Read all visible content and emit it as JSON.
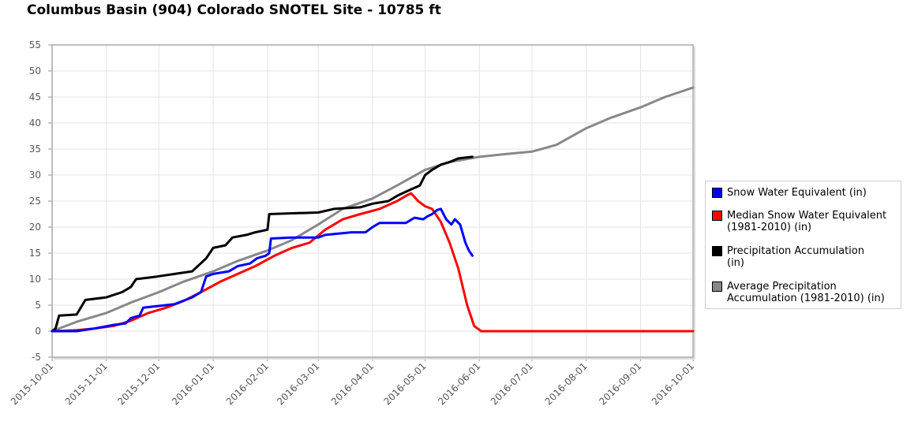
{
  "chart_data": {
    "type": "line",
    "title": "Columbus Basin (904) Colorado SNOTEL Site - 10785 ft",
    "xlabel": "",
    "ylabel": "",
    "x_type": "date",
    "xlim": [
      "2015-10-01",
      "2016-10-01"
    ],
    "ylim": [
      -5,
      55
    ],
    "y_ticks": [
      -5,
      0,
      5,
      10,
      15,
      20,
      25,
      30,
      35,
      40,
      45,
      50,
      55
    ],
    "x_ticks": [
      "2015-10-01",
      "2015-11-01",
      "2015-12-01",
      "2016-01-01",
      "2016-02-01",
      "2016-03-01",
      "2016-04-01",
      "2016-05-01",
      "2016-06-01",
      "2016-07-01",
      "2016-08-01",
      "2016-09-01",
      "2016-10-01"
    ],
    "grid": true,
    "legend_position": "right",
    "series": [
      {
        "name": "Snow Water Equivalent (in)",
        "color": "#0000ff",
        "points": [
          [
            "2015-10-01",
            0
          ],
          [
            "2015-10-15",
            0
          ],
          [
            "2015-10-25",
            0.5
          ],
          [
            "2015-11-05",
            1.2
          ],
          [
            "2015-11-12",
            1.5
          ],
          [
            "2015-11-15",
            2.5
          ],
          [
            "2015-11-20",
            3
          ],
          [
            "2015-11-22",
            4.5
          ],
          [
            "2015-11-30",
            4.8
          ],
          [
            "2015-12-10",
            5.2
          ],
          [
            "2015-12-20",
            6.5
          ],
          [
            "2015-12-25",
            7.5
          ],
          [
            "2015-12-28",
            10.5
          ],
          [
            "2016-01-01",
            11
          ],
          [
            "2016-01-10",
            11.5
          ],
          [
            "2016-01-15",
            12.5
          ],
          [
            "2016-01-22",
            13
          ],
          [
            "2016-01-26",
            14
          ],
          [
            "2016-01-31",
            14.5
          ],
          [
            "2016-02-02",
            15
          ],
          [
            "2016-02-03",
            17.8
          ],
          [
            "2016-02-15",
            18
          ],
          [
            "2016-03-01",
            18
          ],
          [
            "2016-03-05",
            18.5
          ],
          [
            "2016-03-20",
            19
          ],
          [
            "2016-03-28",
            19
          ],
          [
            "2016-04-01",
            20
          ],
          [
            "2016-04-05",
            20.8
          ],
          [
            "2016-04-20",
            20.8
          ],
          [
            "2016-04-25",
            21.8
          ],
          [
            "2016-04-30",
            21.5
          ],
          [
            "2016-05-02",
            22
          ],
          [
            "2016-05-05",
            22.5
          ],
          [
            "2016-05-08",
            23.3
          ],
          [
            "2016-05-10",
            23.5
          ],
          [
            "2016-05-13",
            21.5
          ],
          [
            "2016-05-16",
            20.5
          ],
          [
            "2016-05-18",
            21.5
          ],
          [
            "2016-05-21",
            20.5
          ],
          [
            "2016-05-24",
            17
          ],
          [
            "2016-05-26",
            15.5
          ],
          [
            "2016-05-28",
            14.5
          ]
        ]
      },
      {
        "name": "Median Snow Water Equivalent (1981-2010) (in)",
        "color": "#ff0000",
        "points": [
          [
            "2015-10-01",
            0
          ],
          [
            "2015-10-15",
            0.2
          ],
          [
            "2015-10-25",
            0.5
          ],
          [
            "2015-11-05",
            1
          ],
          [
            "2015-11-15",
            2
          ],
          [
            "2015-11-25",
            3.5
          ],
          [
            "2015-12-05",
            4.5
          ],
          [
            "2015-12-15",
            5.8
          ],
          [
            "2015-12-25",
            7.5
          ],
          [
            "2016-01-05",
            9.5
          ],
          [
            "2016-01-15",
            11
          ],
          [
            "2016-01-25",
            12.5
          ],
          [
            "2016-02-05",
            14.5
          ],
          [
            "2016-02-15",
            16
          ],
          [
            "2016-02-25",
            17
          ],
          [
            "2016-03-05",
            19.5
          ],
          [
            "2016-03-15",
            21.5
          ],
          [
            "2016-03-25",
            22.5
          ],
          [
            "2016-04-05",
            23.5
          ],
          [
            "2016-04-15",
            25
          ],
          [
            "2016-04-20",
            26
          ],
          [
            "2016-04-23",
            26.5
          ],
          [
            "2016-04-27",
            25
          ],
          [
            "2016-05-01",
            24
          ],
          [
            "2016-05-05",
            23.5
          ],
          [
            "2016-05-10",
            21
          ],
          [
            "2016-05-15",
            17
          ],
          [
            "2016-05-20",
            12
          ],
          [
            "2016-05-25",
            5
          ],
          [
            "2016-05-29",
            1
          ],
          [
            "2016-06-02",
            0
          ],
          [
            "2016-10-01",
            0
          ]
        ]
      },
      {
        "name": "Precipitation Accumulation (in)",
        "color": "#000000",
        "points": [
          [
            "2015-10-01",
            0
          ],
          [
            "2015-10-03",
            0.5
          ],
          [
            "2015-10-05",
            3
          ],
          [
            "2015-10-15",
            3.2
          ],
          [
            "2015-10-20",
            6
          ],
          [
            "2015-11-01",
            6.5
          ],
          [
            "2015-11-10",
            7.5
          ],
          [
            "2015-11-15",
            8.5
          ],
          [
            "2015-11-18",
            10
          ],
          [
            "2015-11-30",
            10.5
          ],
          [
            "2015-12-10",
            11
          ],
          [
            "2015-12-20",
            11.5
          ],
          [
            "2015-12-28",
            14
          ],
          [
            "2016-01-01",
            16
          ],
          [
            "2016-01-08",
            16.5
          ],
          [
            "2016-01-12",
            18
          ],
          [
            "2016-01-20",
            18.5
          ],
          [
            "2016-01-25",
            19
          ],
          [
            "2016-02-01",
            19.5
          ],
          [
            "2016-02-02",
            22.5
          ],
          [
            "2016-03-01",
            22.8
          ],
          [
            "2016-03-10",
            23.5
          ],
          [
            "2016-03-25",
            23.8
          ],
          [
            "2016-04-01",
            24.5
          ],
          [
            "2016-04-10",
            25
          ],
          [
            "2016-04-15",
            26
          ],
          [
            "2016-04-20",
            26.8
          ],
          [
            "2016-04-28",
            28
          ],
          [
            "2016-05-01",
            30
          ],
          [
            "2016-05-05",
            31
          ],
          [
            "2016-05-10",
            32
          ],
          [
            "2016-05-15",
            32.5
          ],
          [
            "2016-05-20",
            33.2
          ],
          [
            "2016-05-28",
            33.5
          ]
        ]
      },
      {
        "name": "Average Precipitation Accumulation (1981-2010) (in)",
        "color": "#888888",
        "points": [
          [
            "2015-10-01",
            0
          ],
          [
            "2015-10-15",
            1.8
          ],
          [
            "2015-11-01",
            3.5
          ],
          [
            "2015-11-15",
            5.5
          ],
          [
            "2015-12-01",
            7.5
          ],
          [
            "2015-12-15",
            9.5
          ],
          [
            "2016-01-01",
            11.5
          ],
          [
            "2016-01-15",
            13.5
          ],
          [
            "2016-02-01",
            15.5
          ],
          [
            "2016-02-15",
            17.5
          ],
          [
            "2016-03-01",
            20.5
          ],
          [
            "2016-03-15",
            23.5
          ],
          [
            "2016-04-01",
            25.5
          ],
          [
            "2016-04-15",
            28
          ],
          [
            "2016-05-01",
            31
          ],
          [
            "2016-05-15",
            32.5
          ],
          [
            "2016-06-01",
            33.5
          ],
          [
            "2016-06-15",
            34
          ],
          [
            "2016-07-01",
            34.5
          ],
          [
            "2016-07-15",
            35.8
          ],
          [
            "2016-08-01",
            39
          ],
          [
            "2016-08-15",
            41
          ],
          [
            "2016-09-01",
            43
          ],
          [
            "2016-09-15",
            45
          ],
          [
            "2016-10-01",
            46.8
          ]
        ]
      }
    ]
  },
  "legend": {
    "items": [
      {
        "line1": "Snow Water Equivalent (in)",
        "line2": "",
        "color": "#0000ff"
      },
      {
        "line1": "Median Snow Water Equivalent",
        "line2": "(1981-2010) (in)",
        "color": "#ff0000"
      },
      {
        "line1": "Precipitation Accumulation",
        "line2": "(in)",
        "color": "#000000"
      },
      {
        "line1": "Average Precipitation",
        "line2": "Accumulation (1981-2010) (in)",
        "color": "#888888"
      }
    ]
  }
}
